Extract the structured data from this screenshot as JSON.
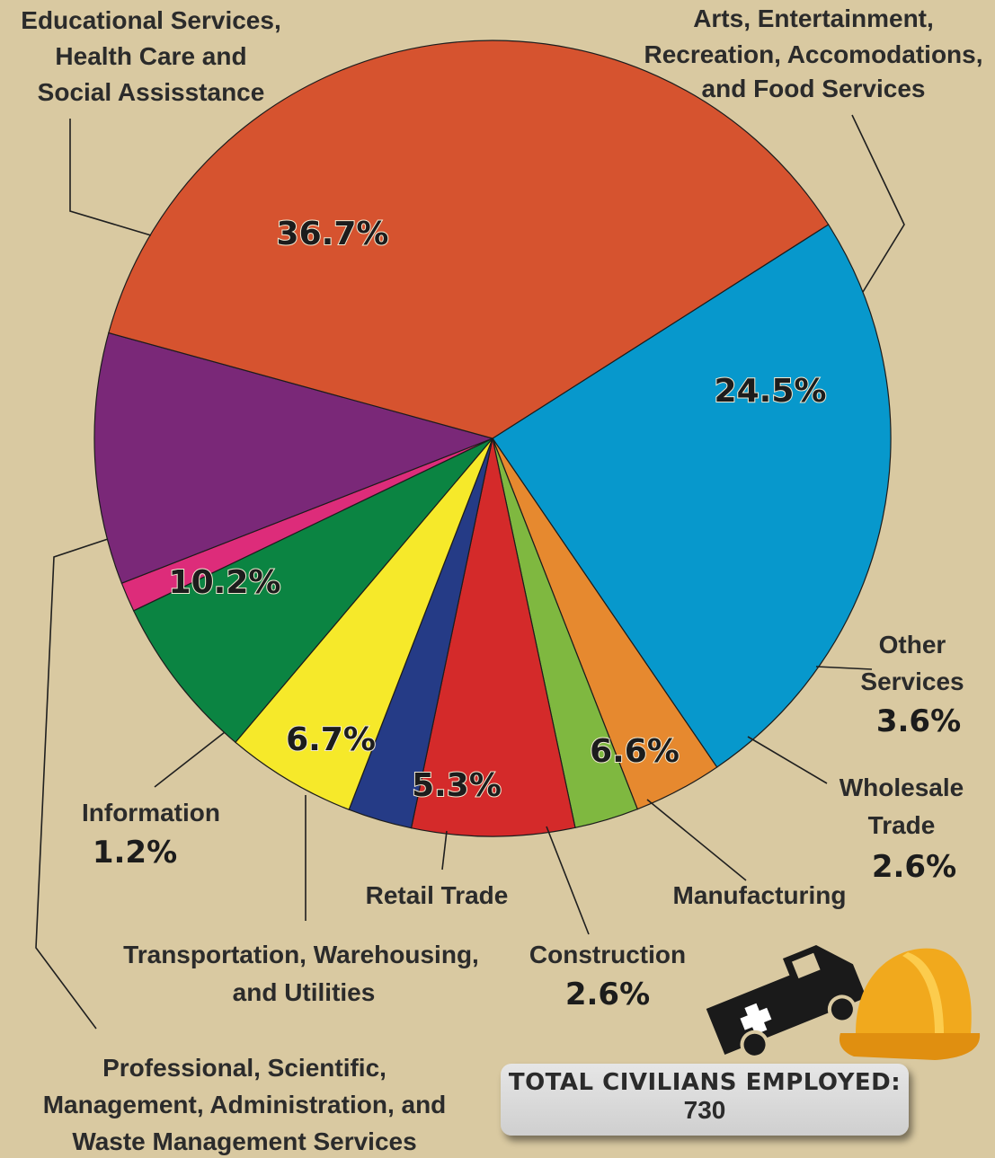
{
  "chart_data": {
    "type": "pie",
    "title": "",
    "slices": [
      {
        "label": "Arts, Entertainment, Recreation, Accomodations, and Food Services",
        "value": 24.5,
        "value_label": "24.5%",
        "color": "#0798cc"
      },
      {
        "label": "Other Services",
        "value": 3.6,
        "value_label": "3.6%",
        "color": "#e6892f"
      },
      {
        "label": "Wholesale Trade",
        "value": 2.6,
        "value_label": "2.6%",
        "color": "#7fb840"
      },
      {
        "label": "Manufacturing",
        "value": 6.6,
        "value_label": "6.6%",
        "color": "#d42a2a"
      },
      {
        "label": "Construction",
        "value": 2.6,
        "value_label": "2.6%",
        "color": "#253b86"
      },
      {
        "label": "Retail Trade",
        "value": 5.3,
        "value_label": "5.3%",
        "color": "#f6e92a"
      },
      {
        "label": "Transportation, Warehousing, and Utilities",
        "value": 6.7,
        "value_label": "6.7%",
        "color": "#0b8442"
      },
      {
        "label": "Information",
        "value": 1.2,
        "value_label": "1.2%",
        "color": "#dd2c7a"
      },
      {
        "label": "Professional, Scientific, Management, Administration, and Waste Management Services",
        "value": 10.2,
        "value_label": "10.2%",
        "color": "#7a2878"
      },
      {
        "label": "Educational Services, Health Care and Social Assistance",
        "value": 36.7,
        "value_label": "36.7%",
        "color": "#d6532f"
      }
    ]
  },
  "labels": {
    "educational": [
      "Educational Services,",
      "Health Care and",
      "Social Assisstance"
    ],
    "arts": [
      "Arts, Entertainment,",
      "Recreation, Accomodations,",
      "and Food Services"
    ],
    "other_services": [
      "Other",
      "Services"
    ],
    "wholesale": [
      "Wholesale",
      "Trade"
    ],
    "manufacturing": "Manufacturing",
    "construction": "Construction",
    "retail": "Retail Trade",
    "transportation": [
      "Transportation, Warehousing,",
      "and Utilities"
    ],
    "information": "Information",
    "professional": [
      "Professional, Scientific,",
      "Management, Administration, and",
      "Waste Management Services"
    ]
  },
  "total": {
    "label": "TOTAL CIVILIANS EMPLOYED:",
    "value": "730"
  },
  "icons": [
    "ambulance-icon",
    "hard-hat-icon"
  ]
}
